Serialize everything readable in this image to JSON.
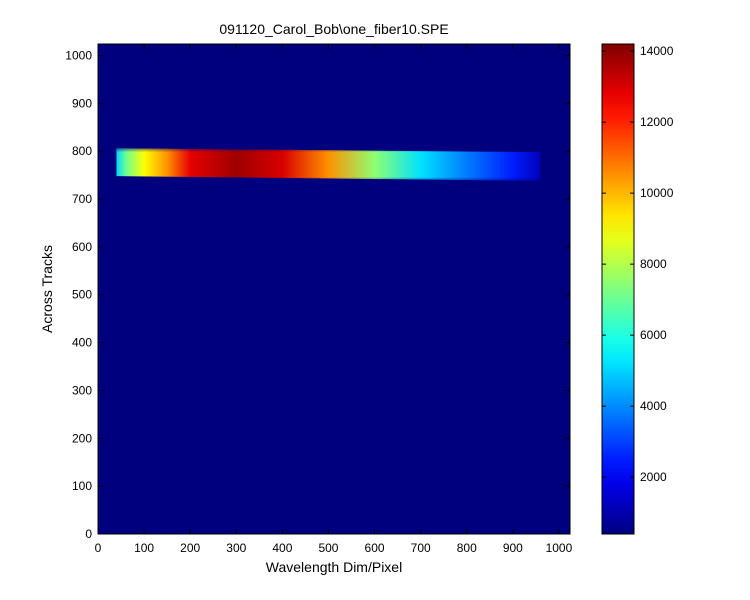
{
  "chart_data": {
    "type": "heatmap",
    "title": "091120_Carol_Bob\\one_fiber10.SPE",
    "xlabel": "Wavelength Dim/Pixel",
    "ylabel": "Across Tracks",
    "xlim": [
      0,
      1024
    ],
    "ylim": [
      0,
      1024
    ],
    "x_ticks": [
      0,
      100,
      200,
      300,
      400,
      500,
      600,
      700,
      800,
      900,
      1000
    ],
    "y_ticks": [
      0,
      100,
      200,
      300,
      400,
      500,
      600,
      700,
      800,
      900,
      1000
    ],
    "colorbar": {
      "colormap": "jet",
      "range": [
        400,
        14200
      ],
      "ticks": [
        2000,
        4000,
        6000,
        8000,
        10000,
        12000,
        14000
      ]
    },
    "background_value": 400,
    "band": {
      "x_start": 40,
      "x_end": 960,
      "y_low_start": 748,
      "y_high_start": 806,
      "y_low_end": 738,
      "y_high_end": 798,
      "intensity_profile": [
        {
          "x": 40,
          "value": 5000
        },
        {
          "x": 60,
          "value": 7000
        },
        {
          "x": 100,
          "value": 9000
        },
        {
          "x": 150,
          "value": 10500
        },
        {
          "x": 200,
          "value": 12800
        },
        {
          "x": 300,
          "value": 13800
        },
        {
          "x": 400,
          "value": 13000
        },
        {
          "x": 500,
          "value": 10500
        },
        {
          "x": 600,
          "value": 7500
        },
        {
          "x": 700,
          "value": 5200
        },
        {
          "x": 800,
          "value": 3800
        },
        {
          "x": 900,
          "value": 2500
        },
        {
          "x": 960,
          "value": 1200
        }
      ]
    }
  }
}
